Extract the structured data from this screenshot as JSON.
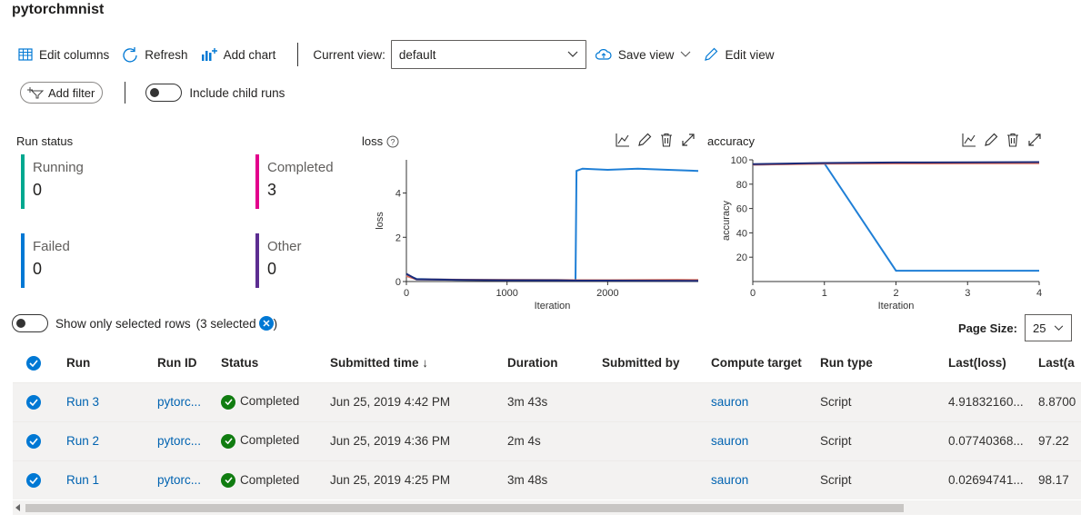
{
  "page": {
    "title": "pytorchmnist"
  },
  "toolbar": {
    "edit_columns": "Edit columns",
    "refresh": "Refresh",
    "add_chart": "Add chart",
    "current_view_label": "Current view:",
    "current_view_value": "default",
    "save_view": "Save view",
    "edit_view": "Edit view"
  },
  "filters": {
    "add_filter": "Add filter",
    "include_child_runs": "Include child runs"
  },
  "run_status": {
    "title": "Run status",
    "items": [
      {
        "label": "Running",
        "count": "0",
        "color": "#00a88f"
      },
      {
        "label": "Completed",
        "count": "3",
        "color": "#e3008c"
      },
      {
        "label": "Failed",
        "count": "0",
        "color": "#0078d4"
      },
      {
        "label": "Other",
        "count": "0",
        "color": "#5c2d91"
      }
    ]
  },
  "chart_data": [
    {
      "type": "line",
      "title": "loss",
      "xlabel": "Iteration",
      "ylabel": "loss",
      "xlim": [
        0,
        2900
      ],
      "ylim": [
        0,
        5.5
      ],
      "xticks": [
        0,
        1000,
        2000
      ],
      "yticks": [
        0,
        2,
        4
      ],
      "series": [
        {
          "color": "#1f7fd6",
          "points": [
            [
              0,
              0.3
            ],
            [
              100,
              0.12
            ],
            [
              500,
              0.08
            ],
            [
              1000,
              0.08
            ],
            [
              1500,
              0.08
            ],
            [
              1680,
              0.06
            ],
            [
              1690,
              5.0
            ],
            [
              1750,
              5.1
            ],
            [
              2000,
              5.05
            ],
            [
              2300,
              5.1
            ],
            [
              2600,
              5.05
            ],
            [
              2900,
              5.0
            ]
          ]
        },
        {
          "color": "#e3735e",
          "points": [
            [
              0,
              0.25
            ],
            [
              100,
              0.1
            ],
            [
              1000,
              0.07
            ],
            [
              2000,
              0.06
            ],
            [
              2700,
              0.08
            ],
            [
              2900,
              0.07
            ]
          ]
        },
        {
          "color": "#1b2a78",
          "points": [
            [
              0,
              0.35
            ],
            [
              100,
              0.1
            ],
            [
              1000,
              0.05
            ],
            [
              2000,
              0.04
            ],
            [
              2900,
              0.03
            ]
          ]
        }
      ]
    },
    {
      "type": "line",
      "title": "accuracy",
      "xlabel": "Iteration",
      "ylabel": "accuracy",
      "xlim": [
        0,
        4
      ],
      "ylim": [
        0,
        100
      ],
      "xticks": [
        0,
        1,
        2,
        3,
        4
      ],
      "yticks": [
        20,
        40,
        60,
        80,
        100
      ],
      "series": [
        {
          "color": "#1f7fd6",
          "points": [
            [
              0,
              96
            ],
            [
              1,
              97
            ],
            [
              2,
              8.87
            ],
            [
              3,
              8.87
            ],
            [
              4,
              8.87
            ]
          ]
        },
        {
          "color": "#e3735e",
          "points": [
            [
              0,
              96
            ],
            [
              1,
              96.8
            ],
            [
              2,
              97
            ],
            [
              3,
              97.1
            ],
            [
              4,
              97.22
            ]
          ]
        },
        {
          "color": "#1b2a78",
          "points": [
            [
              0,
              96.5
            ],
            [
              1,
              97.4
            ],
            [
              2,
              97.8
            ],
            [
              3,
              98.0
            ],
            [
              4,
              98.17
            ]
          ]
        }
      ]
    }
  ],
  "selection": {
    "label": "Show only selected rows",
    "count": "(3 selected",
    "close": ")"
  },
  "page_size": {
    "label": "Page Size:",
    "value": "25"
  },
  "table": {
    "columns": [
      "Run",
      "Run ID",
      "Status",
      "Submitted time ↓",
      "Duration",
      "Submitted by",
      "Compute target",
      "Run type",
      "Last(loss)",
      "Last(a"
    ],
    "rows": [
      {
        "run": "Run 3",
        "run_id": "pytorc...",
        "status": "Completed",
        "submitted": "Jun 25, 2019 4:42 PM",
        "duration": "3m 43s",
        "by": "",
        "target": "sauron",
        "type": "Script",
        "loss": "4.91832160...",
        "acc": "8.8700"
      },
      {
        "run": "Run 2",
        "run_id": "pytorc...",
        "status": "Completed",
        "submitted": "Jun 25, 2019 4:36 PM",
        "duration": "2m 4s",
        "by": "",
        "target": "sauron",
        "type": "Script",
        "loss": "0.07740368...",
        "acc": "97.22"
      },
      {
        "run": "Run 1",
        "run_id": "pytorc...",
        "status": "Completed",
        "submitted": "Jun 25, 2019 4:25 PM",
        "duration": "3m 48s",
        "by": "",
        "target": "sauron",
        "type": "Script",
        "loss": "0.02694741...",
        "acc": "98.17"
      }
    ]
  }
}
